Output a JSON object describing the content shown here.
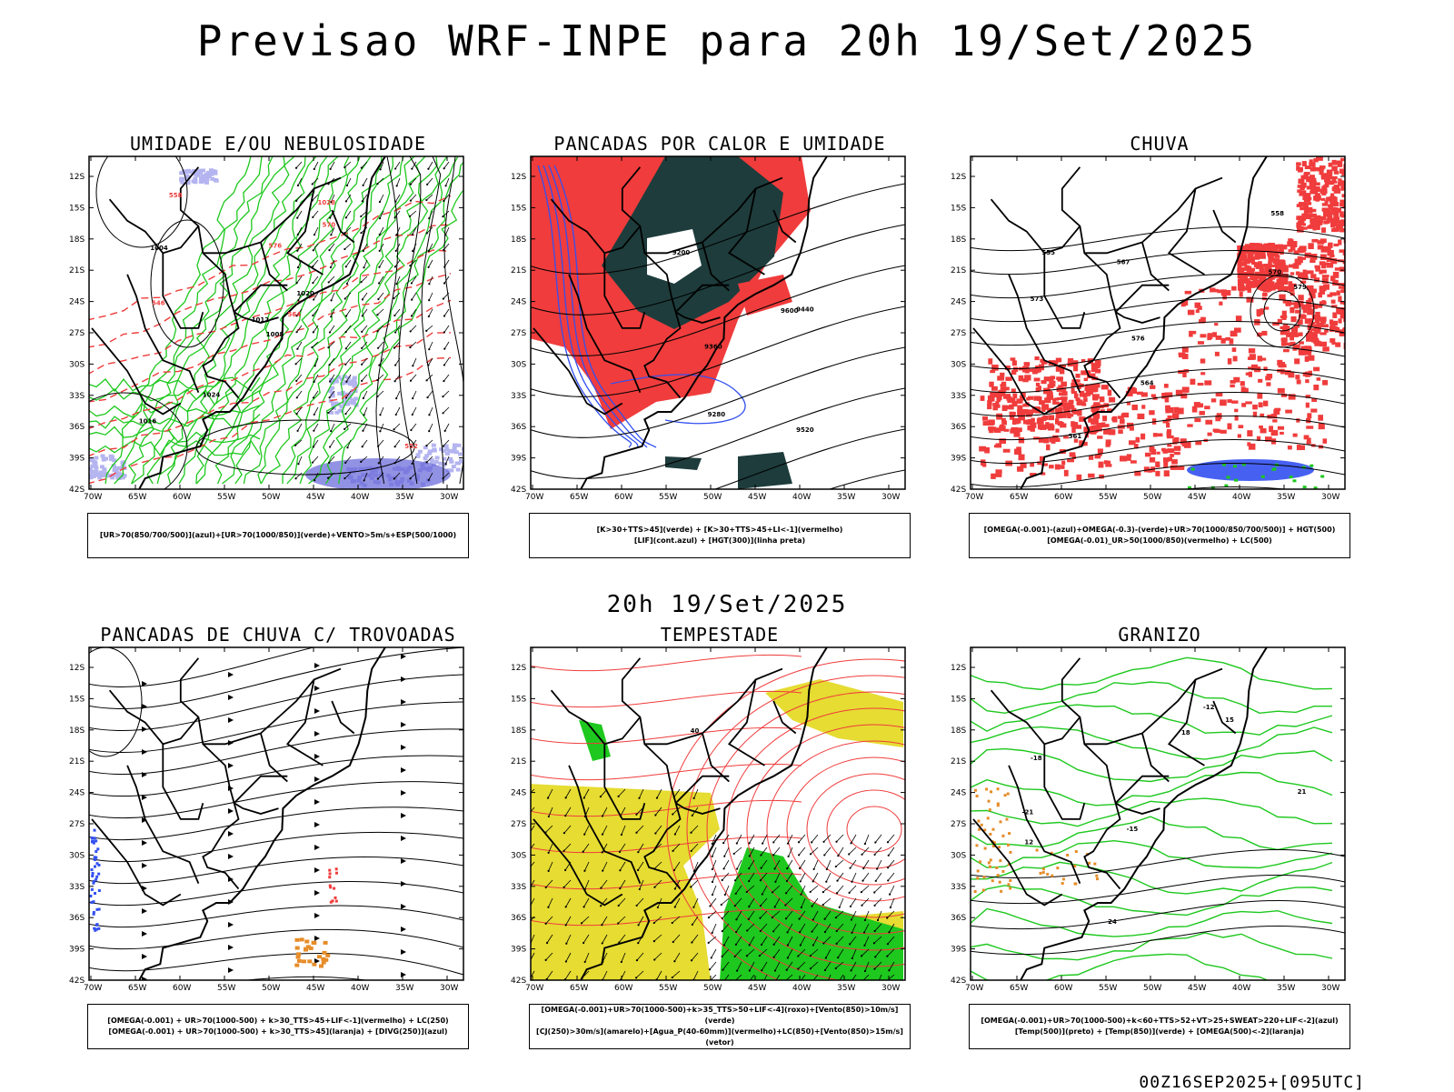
{
  "header": {
    "title": "Previsao WRF-INPE  para 20h 19/Set/2025"
  },
  "mid_date": "20h 19/Set/2025",
  "footer": "00Z16SEP2025+[095UTC]",
  "axes": {
    "lat_labels": [
      "12S",
      "15S",
      "18S",
      "21S",
      "24S",
      "27S",
      "30S",
      "33S",
      "36S",
      "39S",
      "42S"
    ],
    "lon_labels": [
      "70W",
      "65W",
      "60W",
      "55W",
      "50W",
      "45W",
      "40W",
      "35W",
      "30W"
    ]
  },
  "colors": {
    "red": "#f03c3c",
    "green": "#1ec81e",
    "blue": "#3250f0",
    "lavender": "#b4b4f0",
    "darkteal": "#1e3c3c",
    "yellow": "#e6dc32",
    "orange": "#e68c28",
    "black": "#000000"
  },
  "panels": [
    {
      "id": "umidade",
      "title": "UMIDADE E/OU NEBULOSIDADE",
      "legend": [
        "[UR>70(850/700/500)](azul)+[UR>70(1000/850)](verde)+VENTO>5m/s+ESP(500/1000)"
      ],
      "contour_labels": [
        "1008",
        "1004",
        "1012",
        "1016",
        "1020",
        "1024",
        "1028",
        "576",
        "570",
        "564",
        "558",
        "552",
        "546"
      ]
    },
    {
      "id": "pancadas_calor",
      "title": "PANCADAS POR CALOR E UMIDADE",
      "legend": [
        "[K>30+TTS>45](verde) + [K>30+TTS>45+LI<-1](vermelho)",
        "[LIF](cont.azul) + [HGT(300)](linha preta)"
      ],
      "contour_labels": [
        "9600",
        "9520",
        "9440",
        "9360",
        "9280",
        "9200"
      ]
    },
    {
      "id": "chuva",
      "title": "CHUVA",
      "legend": [
        "[OMEGA(-0.001)-(azul)+OMEGA(-0.3)-(verde)+UR>70(1000/850/700/500)] + HGT(500)",
        "[OMEGA(-0.01)_UR>50(1000/850)(vermelho) + LC(500)"
      ],
      "contour_labels": [
        "579",
        "576",
        "573",
        "570",
        "567",
        "564",
        "561",
        "558",
        "555"
      ]
    },
    {
      "id": "pancadas_trovoadas",
      "title": "PANCADAS DE CHUVA C/ TROVOADAS",
      "legend": [
        "[OMEGA(-0.001) + UR>70(1000-500) + k>30_TTS>45+LIF<-1](vermelho) + LC(250)",
        "[OMEGA(-0.001) + UR>70(1000-500) + k>30_TTS>45](laranja) + [DIVG(250)](azul)"
      ],
      "contour_labels": []
    },
    {
      "id": "tempestade",
      "title": "TEMPESTADE",
      "legend": [
        "[OMEGA(-0.001)+UR>70(1000-500)+k>35_TTS>50+LIF<-4](roxo)+[Vento(850)>10m/s](verde)",
        "[CJ(250)>30m/s](amarelo)+[Agua_P(40-60mm)](vermelho)+LC(850)+[Vento(850)>15m/s](vetor)"
      ],
      "contour_labels": [
        "40"
      ]
    },
    {
      "id": "granizo",
      "title": "GRANIZO",
      "legend": [
        "[OMEGA(-0.001)+UR>70(1000-500)+k<60+TTS>52+VT>25+SWEAT>220+LIF<-2](azul)",
        "[Temp(500)](preto) + [Temp(850)](verde) + [OMEGA(500)<-2](laranja)"
      ],
      "contour_labels": [
        "-12",
        "-15",
        "-18",
        "-21",
        "12",
        "15",
        "18",
        "21",
        "24"
      ]
    }
  ]
}
